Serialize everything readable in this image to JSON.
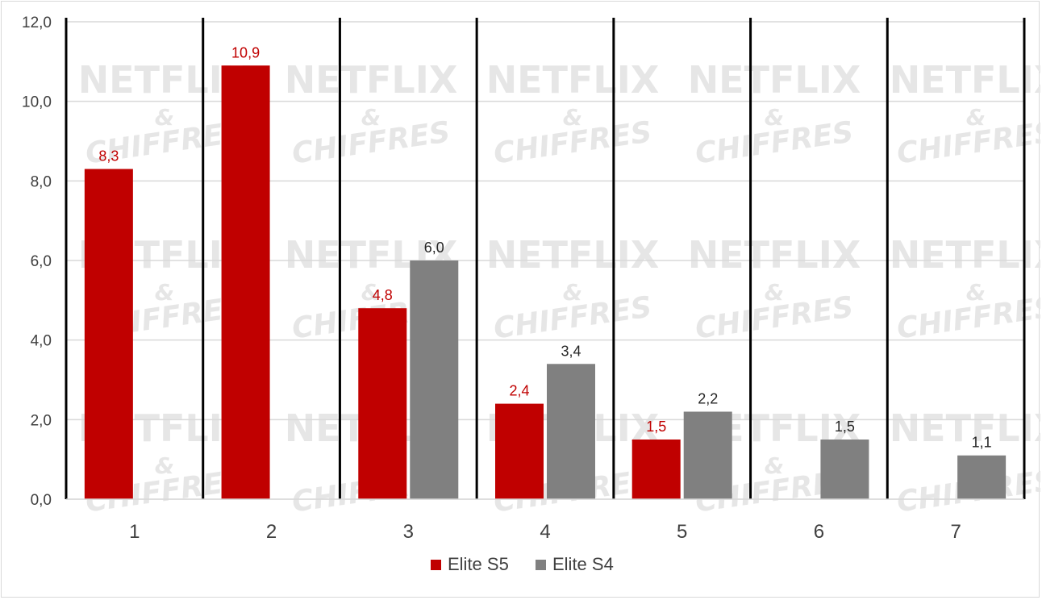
{
  "chart_data": {
    "type": "bar",
    "title": "",
    "xlabel": "",
    "ylabel": "",
    "categories": [
      "1",
      "2",
      "3",
      "4",
      "5",
      "6",
      "7"
    ],
    "series": [
      {
        "name": "Elite S5",
        "color": "#c00000",
        "values": [
          8.3,
          10.9,
          4.8,
          2.4,
          1.5,
          null,
          null
        ],
        "labels": [
          "8,3",
          "10,9",
          "4,8",
          "2,4",
          "1,5",
          "",
          ""
        ]
      },
      {
        "name": "Elite S4",
        "color": "#808080",
        "values": [
          null,
          null,
          6.0,
          3.4,
          2.2,
          1.5,
          1.1
        ],
        "labels": [
          "",
          "",
          "6,0",
          "3,4",
          "2,2",
          "1,5",
          "1,1"
        ]
      }
    ],
    "ylim": [
      0,
      12
    ],
    "yticks": [
      0,
      2,
      4,
      6,
      8,
      10,
      12
    ],
    "ytick_labels": [
      "0,0",
      "2,0",
      "4,0",
      "6,0",
      "8,0",
      "10,0",
      "12,0"
    ],
    "grid": true,
    "legend_position": "bottom",
    "label_colors": {
      "Elite S5": "#c00000",
      "Elite S4": "#262626"
    },
    "watermark": {
      "line1": "NETFLIX",
      "line2": "&",
      "line3": "CHIFFRES"
    }
  }
}
